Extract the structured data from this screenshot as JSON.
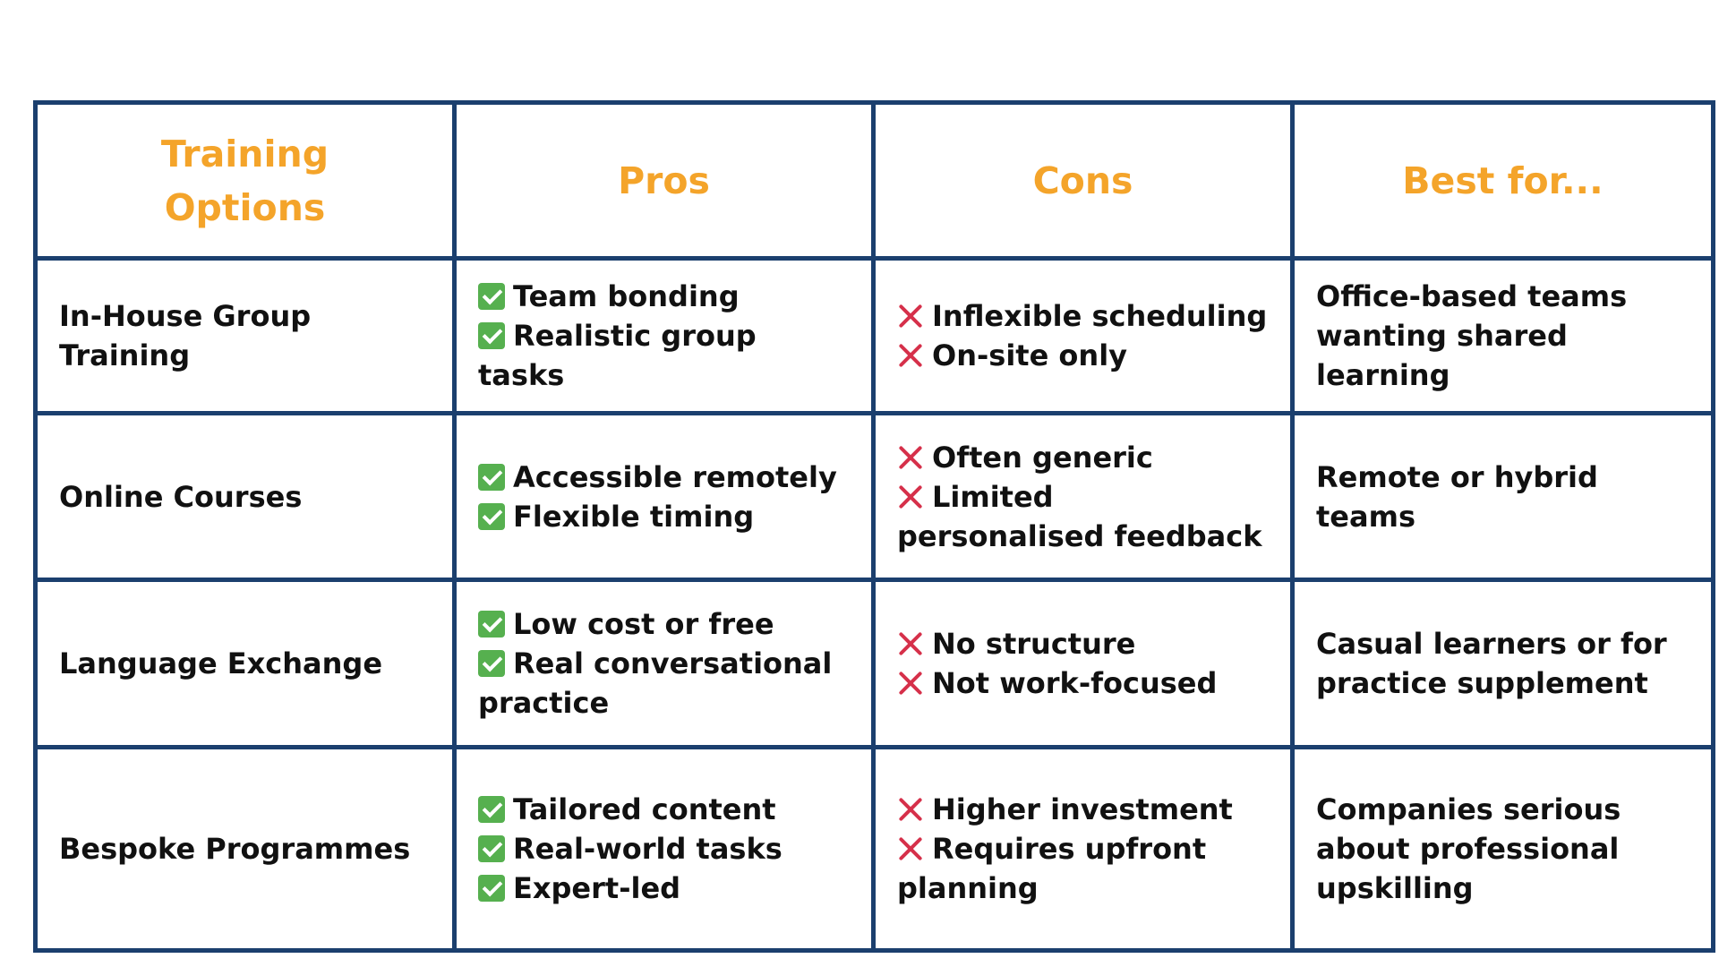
{
  "header": {
    "option_line1": "Training",
    "option_line2": "Options",
    "pros": "Pros",
    "cons": "Cons",
    "best_for": "Best for..."
  },
  "colors": {
    "border": "#1b3f6e",
    "header_text": "#f4a42a",
    "check": "#56b04f",
    "cross": "#d6304a"
  },
  "rows": [
    {
      "option": "In-House Group Training",
      "pros": [
        "Team bonding",
        "Realistic group tasks"
      ],
      "cons": [
        "Inflexible scheduling",
        "On-site only"
      ],
      "best_for": "Office-based teams wanting shared learning"
    },
    {
      "option": "Online Courses",
      "pros": [
        "Accessible remotely",
        "Flexible timing"
      ],
      "cons": [
        "Often generic",
        "Limited personalised feedback"
      ],
      "best_for": "Remote or hybrid teams"
    },
    {
      "option": "Language Exchange",
      "pros": [
        "Low cost or free",
        "Real conversational practice"
      ],
      "cons": [
        "No structure",
        "Not work-focused"
      ],
      "best_for": "Casual learners or for practice supplement"
    },
    {
      "option": "Bespoke Programmes",
      "pros": [
        "Tailored content",
        "Real-world tasks",
        "Expert-led"
      ],
      "cons": [
        "Higher investment",
        "Requires upfront planning"
      ],
      "best_for": "Companies serious about professional upskilling"
    }
  ],
  "icons": {
    "pro": "check-icon",
    "con": "cross-icon"
  }
}
